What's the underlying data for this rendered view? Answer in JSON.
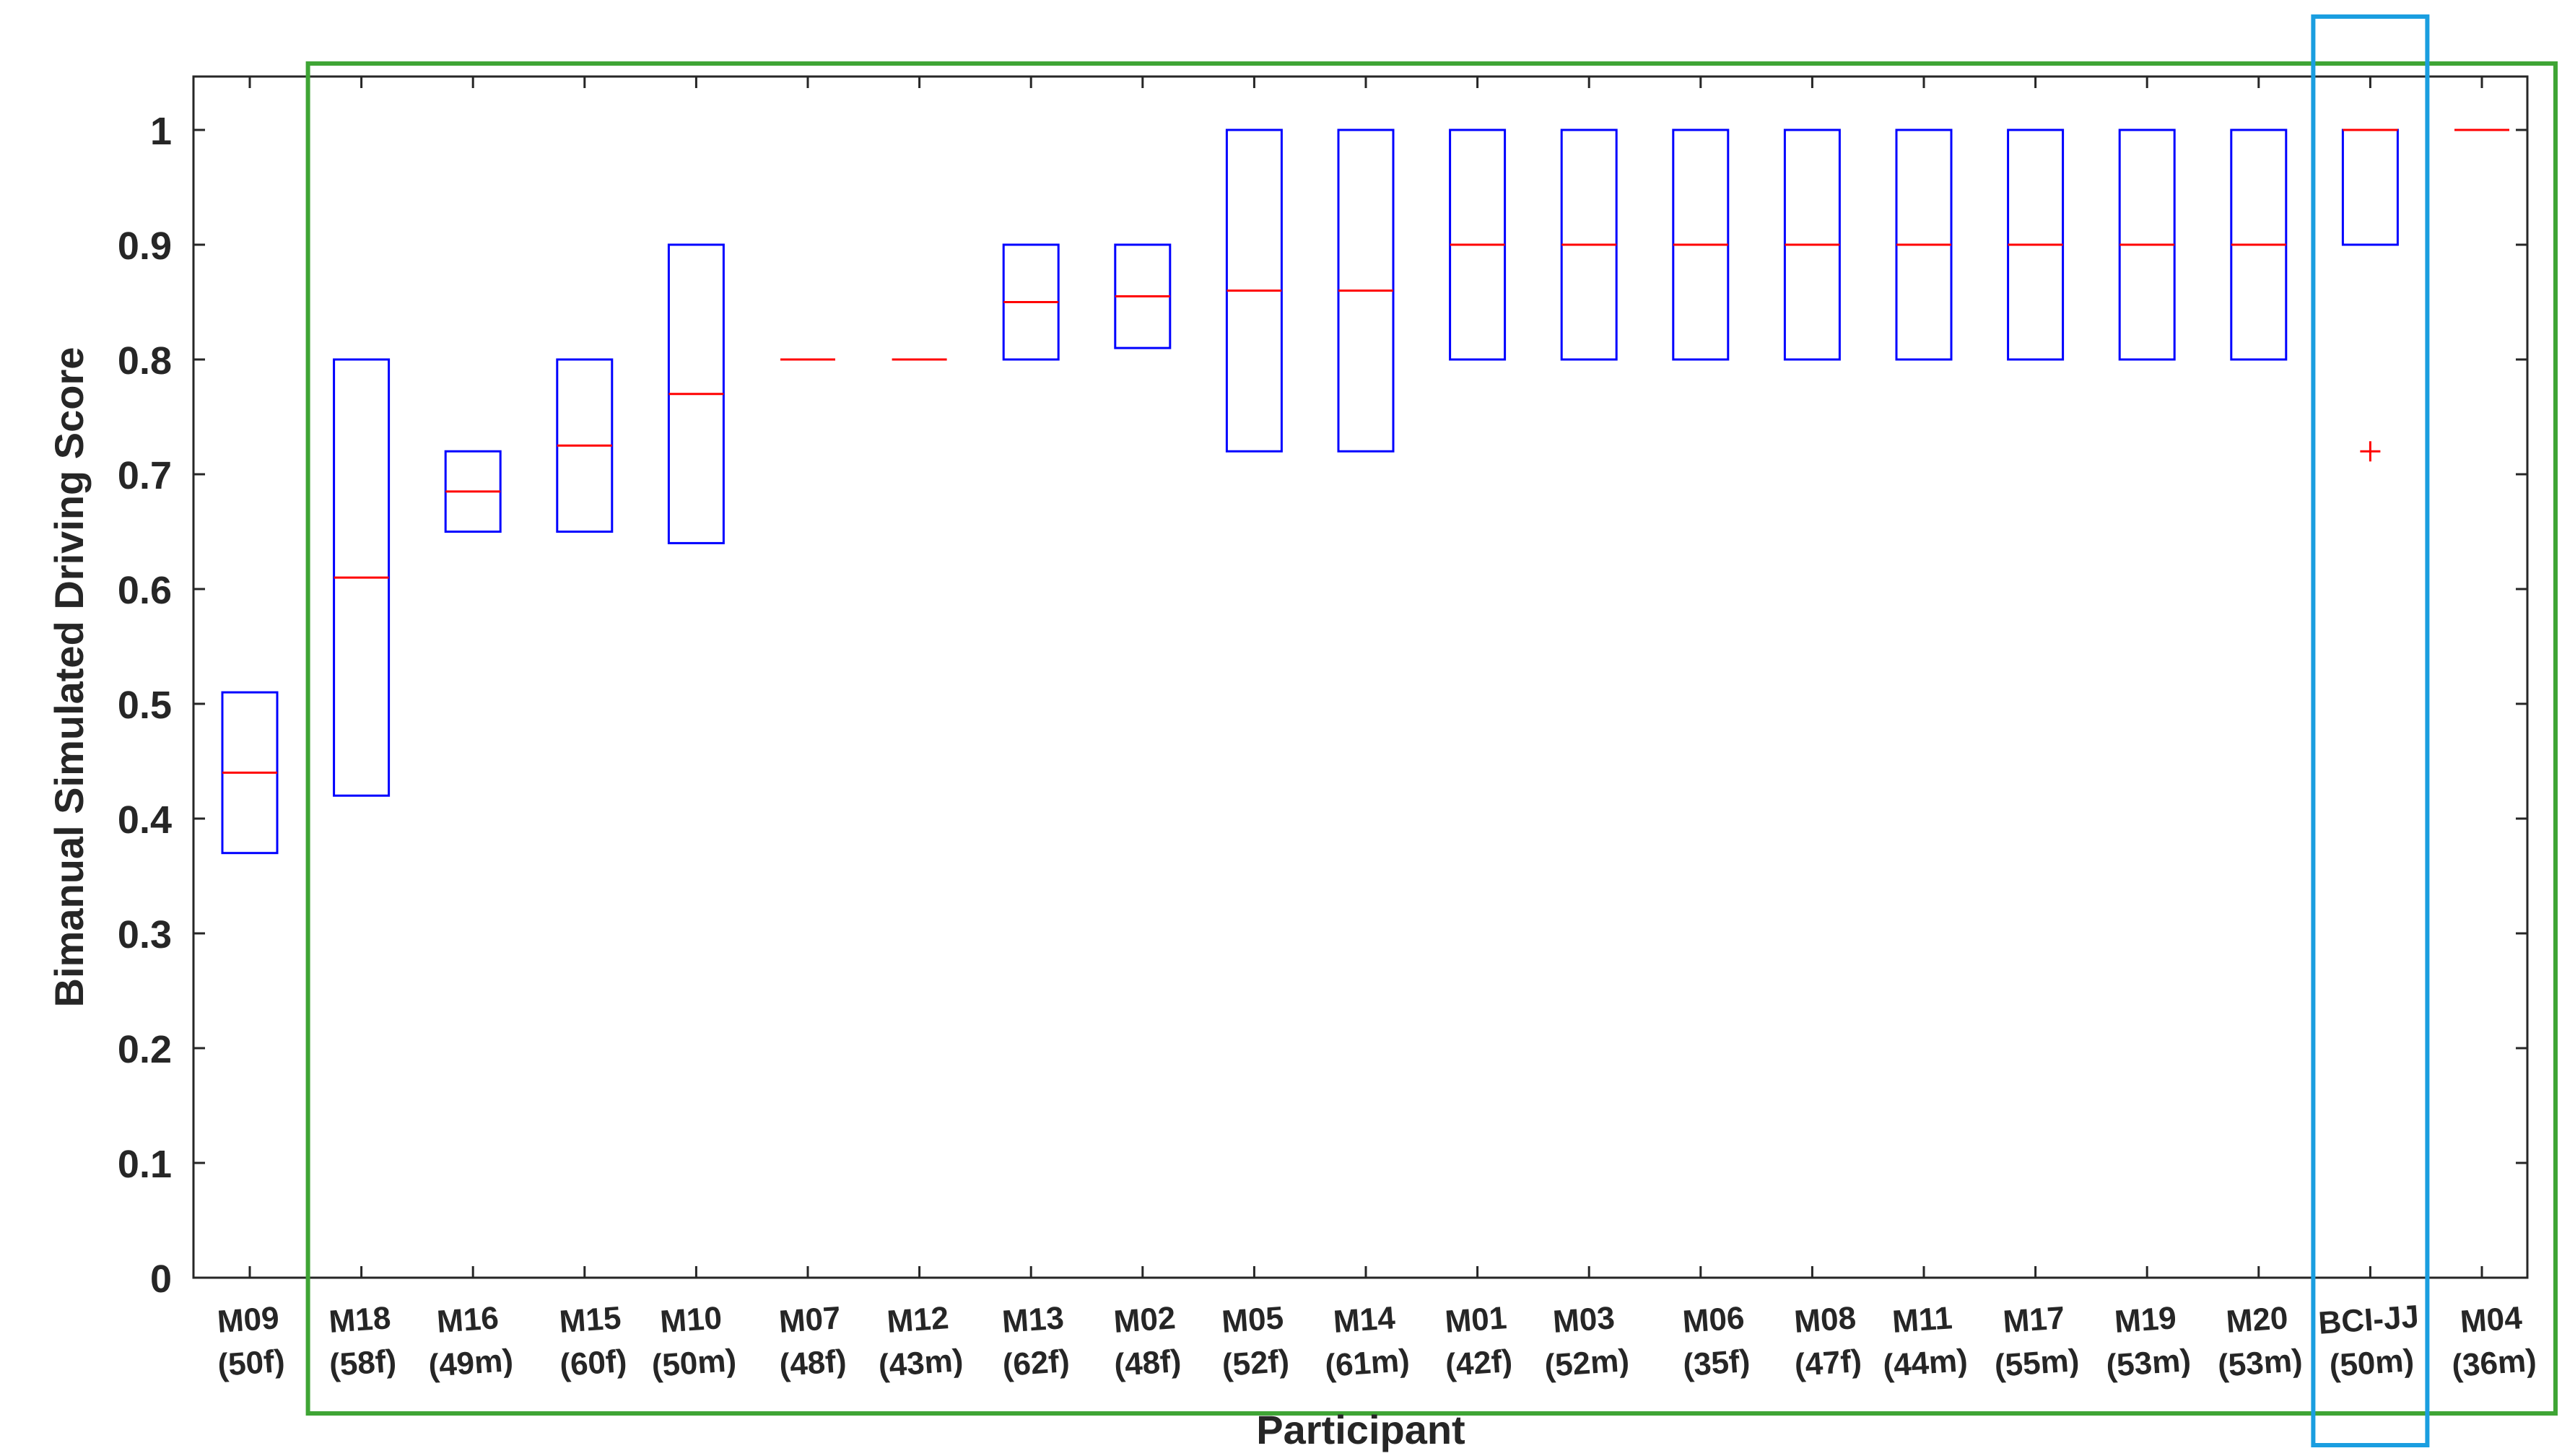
{
  "chart_data": {
    "type": "box",
    "title": "",
    "xlabel": "Participant",
    "ylabel": "Bimanual Simulated Driving Score",
    "ylim": [
      0,
      1.05
    ],
    "yticks": [
      "0",
      "0.1",
      "0.2",
      "0.3",
      "0.4",
      "0.5",
      "0.6",
      "0.7",
      "0.8",
      "0.9",
      "1"
    ],
    "grid": false,
    "colors": {
      "box": "#0000ff",
      "median": "#ff0000",
      "outlier": "#ff0000",
      "group_box": "#3fa535",
      "highlight_box": "#1a9ee0",
      "axis": "#262626"
    },
    "categories": [
      {
        "id": "M09",
        "info": "(50f)"
      },
      {
        "id": "M18",
        "info": "(58f)"
      },
      {
        "id": "M16",
        "info": "(49m)"
      },
      {
        "id": "M15",
        "info": "(60f)"
      },
      {
        "id": "M10",
        "info": "(50m)"
      },
      {
        "id": "M07",
        "info": "(48f)"
      },
      {
        "id": "M12",
        "info": "(43m)"
      },
      {
        "id": "M13",
        "info": "(62f)"
      },
      {
        "id": "M02",
        "info": "(48f)"
      },
      {
        "id": "M05",
        "info": "(52f)"
      },
      {
        "id": "M14",
        "info": "(61m)"
      },
      {
        "id": "M01",
        "info": "(42f)"
      },
      {
        "id": "M03",
        "info": "(52m)"
      },
      {
        "id": "M06",
        "info": "(35f)"
      },
      {
        "id": "M08",
        "info": "(47f)"
      },
      {
        "id": "M11",
        "info": "(44m)"
      },
      {
        "id": "M17",
        "info": "(55m)"
      },
      {
        "id": "M19",
        "info": "(53m)"
      },
      {
        "id": "M20",
        "info": "(53m)"
      },
      {
        "id": "BCI-JJ",
        "info": "(50m)"
      },
      {
        "id": "M04",
        "info": "(36m)"
      }
    ],
    "boxes": [
      {
        "q1": 0.37,
        "median": 0.44,
        "q3": 0.51
      },
      {
        "q1": 0.42,
        "median": 0.61,
        "q3": 0.8
      },
      {
        "q1": 0.65,
        "median": 0.685,
        "q3": 0.72
      },
      {
        "q1": 0.65,
        "median": 0.725,
        "q3": 0.8
      },
      {
        "q1": 0.64,
        "median": 0.77,
        "q3": 0.9
      },
      {
        "q1": 0.8,
        "median": 0.8,
        "q3": 0.8
      },
      {
        "q1": 0.8,
        "median": 0.8,
        "q3": 0.8
      },
      {
        "q1": 0.8,
        "median": 0.85,
        "q3": 0.9
      },
      {
        "q1": 0.81,
        "median": 0.855,
        "q3": 0.9
      },
      {
        "q1": 0.72,
        "median": 0.86,
        "q3": 1.0
      },
      {
        "q1": 0.72,
        "median": 0.86,
        "q3": 1.0
      },
      {
        "q1": 0.8,
        "median": 0.9,
        "q3": 1.0
      },
      {
        "q1": 0.8,
        "median": 0.9,
        "q3": 1.0
      },
      {
        "q1": 0.8,
        "median": 0.9,
        "q3": 1.0
      },
      {
        "q1": 0.8,
        "median": 0.9,
        "q3": 1.0
      },
      {
        "q1": 0.8,
        "median": 0.9,
        "q3": 1.0
      },
      {
        "q1": 0.8,
        "median": 0.9,
        "q3": 1.0
      },
      {
        "q1": 0.8,
        "median": 0.9,
        "q3": 1.0
      },
      {
        "q1": 0.8,
        "median": 0.9,
        "q3": 1.0
      },
      {
        "q1": 0.9,
        "median": 1.0,
        "q3": 1.0
      },
      {
        "q1": 1.0,
        "median": 1.0,
        "q3": 1.0
      }
    ],
    "outliers": [
      {
        "category": "BCI-JJ",
        "value": 0.72
      }
    ],
    "annotations": [
      {
        "type": "group-box",
        "from": "M18",
        "to": "M04",
        "color": "green"
      },
      {
        "type": "highlight-box",
        "category": "BCI-JJ",
        "color": "blue"
      }
    ]
  }
}
